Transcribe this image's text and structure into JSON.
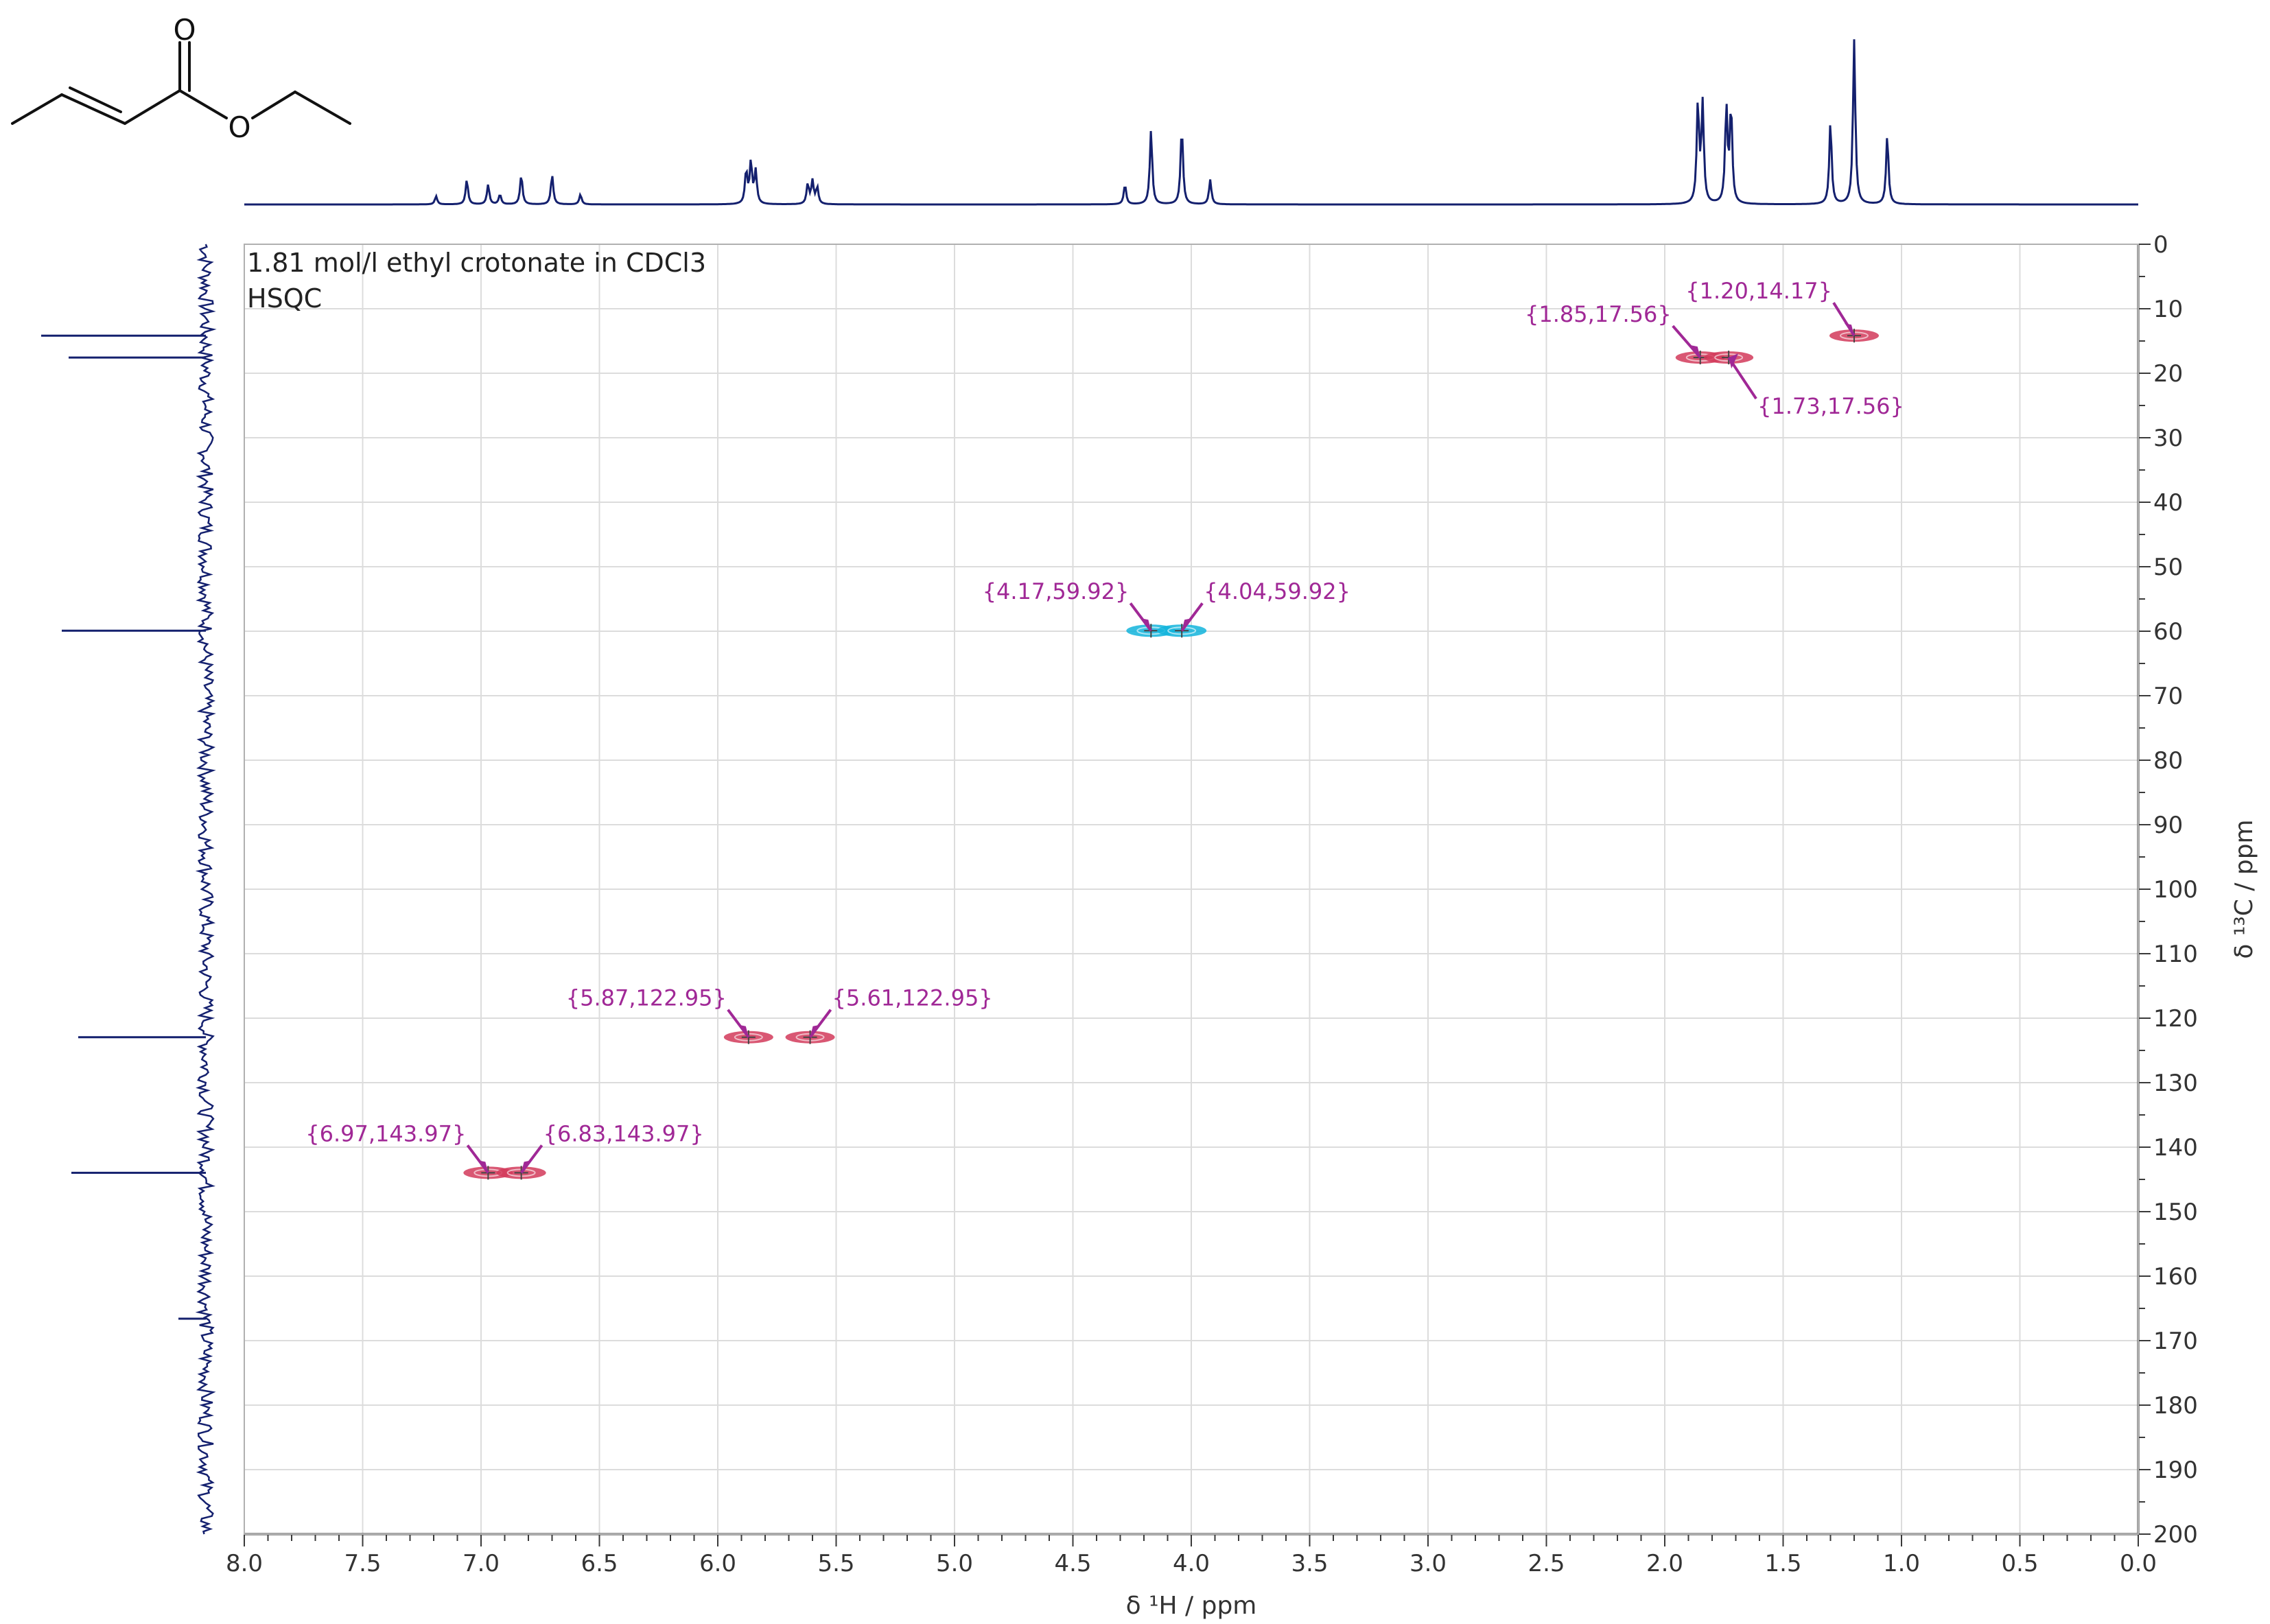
{
  "chart_data": {
    "type": "heatmap",
    "experiment": "HSQC",
    "sample": "1.81 mol/l ethyl crotonate in CDCl3",
    "x_axis": {
      "label": "δ ¹H / ppm",
      "range": [
        8.0,
        0.0
      ],
      "reversed": true,
      "ticks": [
        "8.0",
        "7.5",
        "7.0",
        "6.5",
        "6.0",
        "5.5",
        "5.0",
        "4.5",
        "4.0",
        "3.5",
        "3.0",
        "2.5",
        "2.0",
        "1.5",
        "1.0",
        "0.5",
        "0.0"
      ]
    },
    "y_axis": {
      "label": "δ ¹³C / ppm",
      "range": [
        0,
        200
      ],
      "position": "right",
      "ticks": [
        "0",
        "10",
        "20",
        "30",
        "40",
        "50",
        "60",
        "70",
        "80",
        "90",
        "100",
        "110",
        "120",
        "130",
        "140",
        "150",
        "160",
        "170",
        "180",
        "190",
        "200"
      ]
    },
    "grid": true,
    "cross_peaks": [
      {
        "label": "{1.20,14.17}",
        "h": 1.2,
        "c": 14.17,
        "phase": "positive"
      },
      {
        "label": "{1.85,17.56}",
        "h": 1.85,
        "c": 17.56,
        "phase": "positive"
      },
      {
        "label": "{1.73,17.56}",
        "h": 1.73,
        "c": 17.56,
        "phase": "positive"
      },
      {
        "label": "{4.17,59.92}",
        "h": 4.17,
        "c": 59.92,
        "phase": "negative"
      },
      {
        "label": "{4.04,59.92}",
        "h": 4.04,
        "c": 59.92,
        "phase": "negative"
      },
      {
        "label": "{5.87,122.95}",
        "h": 5.87,
        "c": 122.95,
        "phase": "positive"
      },
      {
        "label": "{5.61,122.95}",
        "h": 5.61,
        "c": 122.95,
        "phase": "positive"
      },
      {
        "label": "{6.97,143.97}",
        "h": 6.97,
        "c": 143.97,
        "phase": "positive"
      },
      {
        "label": "{6.83,143.97}",
        "h": 6.83,
        "c": 143.97,
        "phase": "positive"
      }
    ],
    "proton_1d_peaks_ppm": [
      7.19,
      7.06,
      6.97,
      6.92,
      6.83,
      6.7,
      6.58,
      5.88,
      5.86,
      5.84,
      5.62,
      5.6,
      5.58,
      4.28,
      4.17,
      4.04,
      3.92,
      1.86,
      1.84,
      1.74,
      1.72,
      1.3,
      1.2,
      1.06
    ],
    "carbon_1d_peaks_ppm": [
      14.17,
      17.56,
      59.92,
      122.95,
      143.97,
      166.6
    ]
  },
  "molecule": {
    "name": "ethyl crotonate",
    "atom_labels": [
      "O",
      "O"
    ]
  },
  "colors": {
    "spectrum": "#14206e",
    "positive_peak": "#d23a5a",
    "negative_peak": "#12b4dc",
    "annotation": "#a02896",
    "grid": "#dcdcdc",
    "axis": "#3a3a3a"
  }
}
